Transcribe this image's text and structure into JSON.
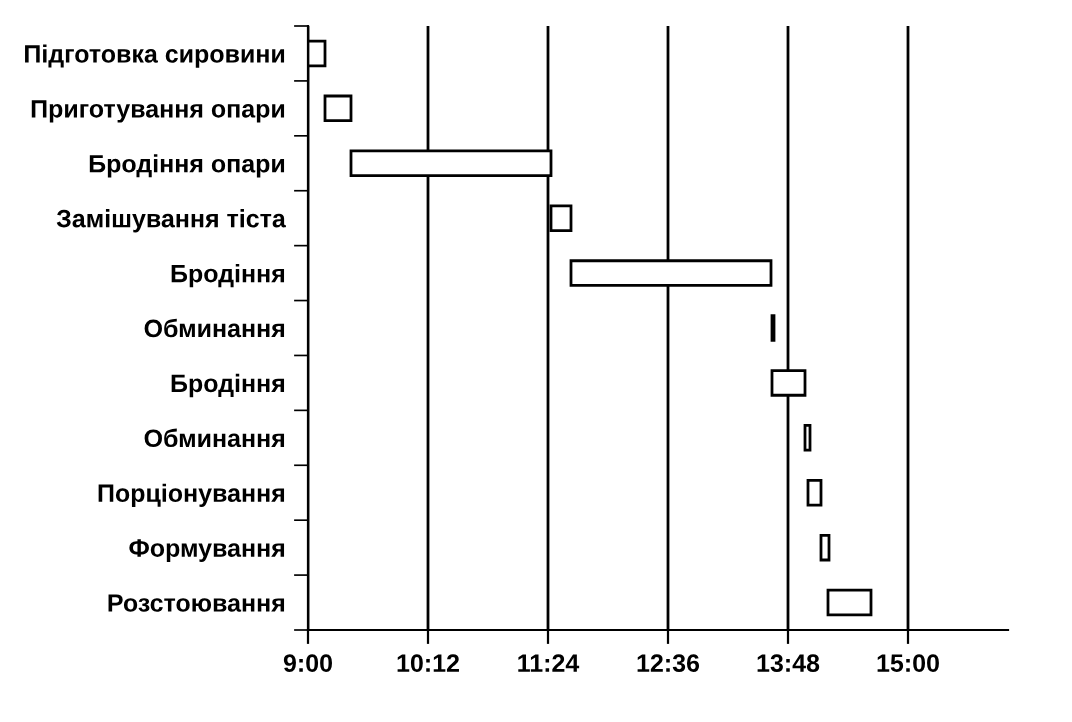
{
  "chart_data": {
    "type": "bar",
    "orientation": "horizontal",
    "categories": [
      "Підготовка сировини",
      "Приготування опари",
      "Бродіння опари",
      "Замішування тіста",
      "Бродіння",
      "Обминання",
      "Бродіння",
      "Обминання",
      "Порціонування",
      "Формування",
      "Розстоювання"
    ],
    "base": [
      9.0,
      9.17,
      9.43,
      11.43,
      11.63,
      13.64,
      13.64,
      13.97,
      14.0,
      14.13,
      14.2
    ],
    "values": [
      0.17,
      0.26,
      2.0,
      0.2,
      2.0,
      0.02,
      0.33,
      0.05,
      0.13,
      0.08,
      0.43
    ],
    "color": "#ffffff",
    "xlim": [
      9,
      16
    ],
    "xticks": [
      {
        "value": 9,
        "label": "9:00"
      },
      {
        "value": 10.2,
        "label": "10:12"
      },
      {
        "value": 11.4,
        "label": "11:24"
      },
      {
        "value": 12.6,
        "label": "12:36"
      },
      {
        "value": 13.8,
        "label": "13:48"
      },
      {
        "value": 15,
        "label": "15:00"
      }
    ],
    "grid": "x"
  }
}
